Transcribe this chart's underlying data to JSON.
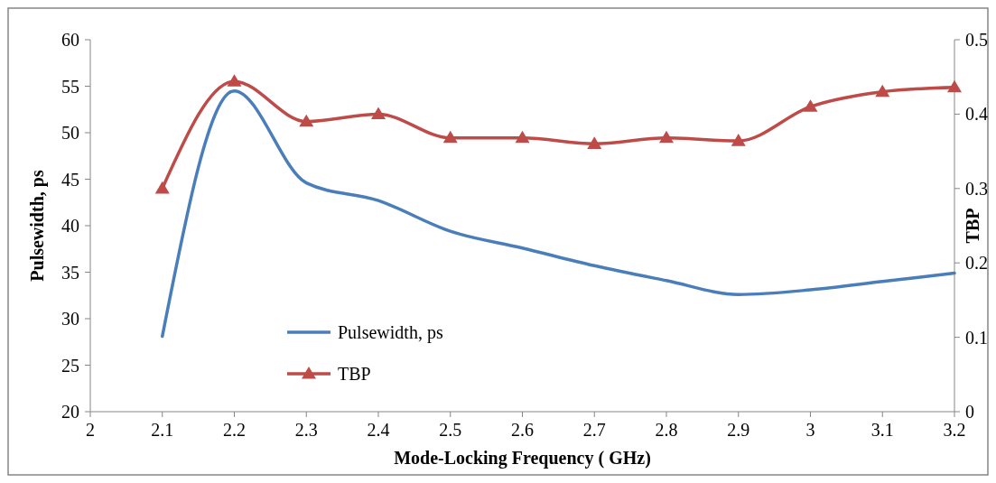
{
  "chart_data": {
    "type": "line",
    "xlabel": "Mode-Locking Frequency ( GHz)",
    "ylabel": "Pulsewidth, ps",
    "y2label": "TBP",
    "x": [
      2.1,
      2.2,
      2.3,
      2.4,
      2.5,
      2.6,
      2.7,
      2.8,
      2.9,
      3.0,
      3.1,
      3.2
    ],
    "xlim": [
      2,
      3.2
    ],
    "xticks": [
      2,
      2.1,
      2.2,
      2.3,
      2.4,
      2.5,
      2.6,
      2.7,
      2.8,
      2.9,
      3,
      3.1,
      3.2
    ],
    "ylim": [
      20,
      60
    ],
    "yticks": [
      20,
      25,
      30,
      35,
      40,
      45,
      50,
      55,
      60
    ],
    "y2lim": [
      0,
      0.5
    ],
    "y2ticks": [
      0,
      0.1,
      0.2,
      0.3,
      0.4,
      0.5
    ],
    "series": [
      {
        "name": "Pulsewidth, ps",
        "color": "#4a7ebb",
        "marker": "none",
        "values": [
          28.1,
          54.5,
          44.6,
          42.7,
          39.4,
          37.6,
          35.7,
          34.1,
          32.6,
          33.1,
          34.0,
          34.9
        ]
      },
      {
        "name": "TBP",
        "color": "#be4b48",
        "marker": "triangle",
        "axis": "y2",
        "values": [
          0.3,
          0.444,
          0.39,
          0.4,
          0.368,
          0.368,
          0.36,
          0.368,
          0.364,
          0.41,
          0.43,
          0.436
        ]
      }
    ],
    "grid": false,
    "legend": "bottom left",
    "line_style": "solid"
  }
}
